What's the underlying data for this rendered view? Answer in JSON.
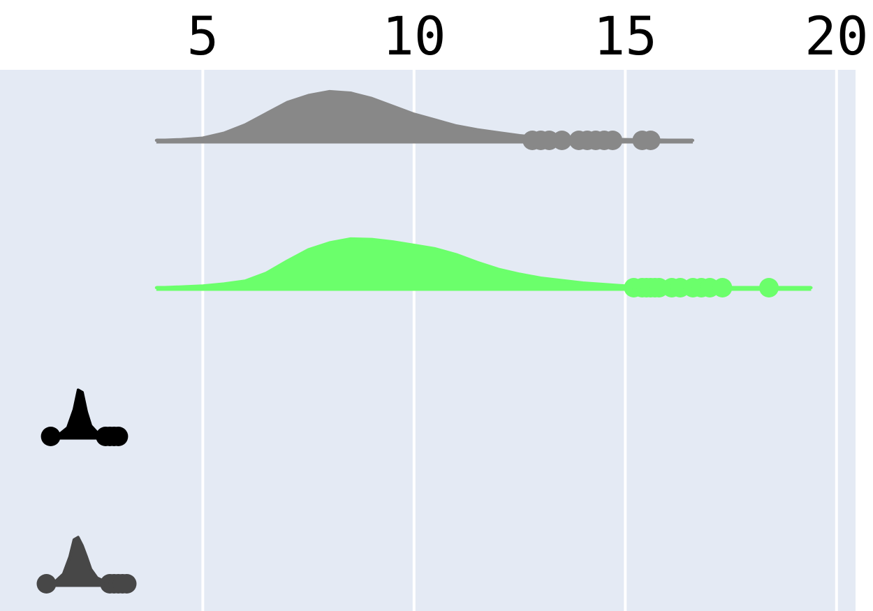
{
  "chart_data": {
    "type": "violin",
    "orientation": "horizontal",
    "side": "positive",
    "points": "outliers",
    "xlim": [
      0.2,
      20.45
    ],
    "x_ticks": [
      5,
      10,
      15,
      20
    ],
    "x_tick_labels": [
      "5",
      "10",
      "15",
      "20"
    ],
    "x_axis_position": "top",
    "grid": true,
    "plot_background": "#e4eaf4",
    "legend": false,
    "title": "",
    "xlabel": "",
    "ylabel": "",
    "series": [
      {
        "color": "#888888",
        "range": [
          3.9,
          16.6
        ],
        "peak_height": 0.62,
        "density": [
          [
            3.9,
            0.0
          ],
          [
            4.5,
            0.02
          ],
          [
            5.0,
            0.05
          ],
          [
            5.5,
            0.15
          ],
          [
            6.0,
            0.32
          ],
          [
            6.5,
            0.55
          ],
          [
            7.0,
            0.78
          ],
          [
            7.5,
            0.92
          ],
          [
            8.0,
            1.0
          ],
          [
            8.5,
            0.97
          ],
          [
            9.0,
            0.86
          ],
          [
            9.5,
            0.7
          ],
          [
            10.0,
            0.54
          ],
          [
            10.5,
            0.42
          ],
          [
            11.0,
            0.3
          ],
          [
            11.5,
            0.22
          ],
          [
            12.0,
            0.16
          ],
          [
            12.5,
            0.1
          ],
          [
            13.0,
            0.06
          ],
          [
            14.0,
            0.03
          ],
          [
            15.0,
            0.02
          ],
          [
            16.6,
            0.0
          ]
        ],
        "outliers": [
          12.8,
          13.0,
          13.2,
          13.5,
          13.9,
          14.1,
          14.3,
          14.5,
          14.7,
          15.4,
          15.6
        ]
      },
      {
        "color": "#6bff6b",
        "range": [
          3.9,
          19.4
        ],
        "peak_height": 0.62,
        "density": [
          [
            3.9,
            0.0
          ],
          [
            4.5,
            0.02
          ],
          [
            5.0,
            0.04
          ],
          [
            5.5,
            0.08
          ],
          [
            6.0,
            0.14
          ],
          [
            6.5,
            0.3
          ],
          [
            7.0,
            0.55
          ],
          [
            7.5,
            0.78
          ],
          [
            8.0,
            0.92
          ],
          [
            8.5,
            1.0
          ],
          [
            9.0,
            0.99
          ],
          [
            9.5,
            0.94
          ],
          [
            10.0,
            0.87
          ],
          [
            10.5,
            0.8
          ],
          [
            11.0,
            0.68
          ],
          [
            11.5,
            0.52
          ],
          [
            12.0,
            0.38
          ],
          [
            12.5,
            0.28
          ],
          [
            13.0,
            0.2
          ],
          [
            14.0,
            0.1
          ],
          [
            15.0,
            0.04
          ],
          [
            16.0,
            0.01
          ],
          [
            19.4,
            0.0
          ]
        ],
        "outliers": [
          15.2,
          15.4,
          15.5,
          15.6,
          15.7,
          15.8,
          16.1,
          16.3,
          16.6,
          16.8,
          17.0,
          17.3,
          18.4
        ]
      },
      {
        "color": "#000000",
        "range": [
          1.45,
          2.95
        ],
        "peak_height": 0.62,
        "density": [
          [
            1.45,
            0.0
          ],
          [
            1.6,
            0.04
          ],
          [
            1.8,
            0.18
          ],
          [
            1.95,
            0.55
          ],
          [
            2.05,
            0.95
          ],
          [
            2.15,
            0.9
          ],
          [
            2.25,
            0.5
          ],
          [
            2.35,
            0.22
          ],
          [
            2.5,
            0.08
          ],
          [
            2.7,
            0.02
          ],
          [
            2.95,
            0.0
          ]
        ],
        "outliers": [
          1.4,
          2.7,
          2.8,
          2.9,
          3.0
        ]
      },
      {
        "color": "#474747",
        "range": [
          1.3,
          3.0
        ],
        "peak_height": 0.62,
        "density": [
          [
            1.3,
            0.0
          ],
          [
            1.5,
            0.04
          ],
          [
            1.7,
            0.2
          ],
          [
            1.85,
            0.55
          ],
          [
            1.95,
            0.9
          ],
          [
            2.05,
            0.95
          ],
          [
            2.15,
            0.78
          ],
          [
            2.25,
            0.55
          ],
          [
            2.35,
            0.3
          ],
          [
            2.5,
            0.12
          ],
          [
            2.7,
            0.04
          ],
          [
            3.0,
            0.0
          ]
        ],
        "outliers": [
          1.3,
          2.8,
          2.9,
          3.0,
          3.1,
          3.2
        ]
      }
    ]
  }
}
